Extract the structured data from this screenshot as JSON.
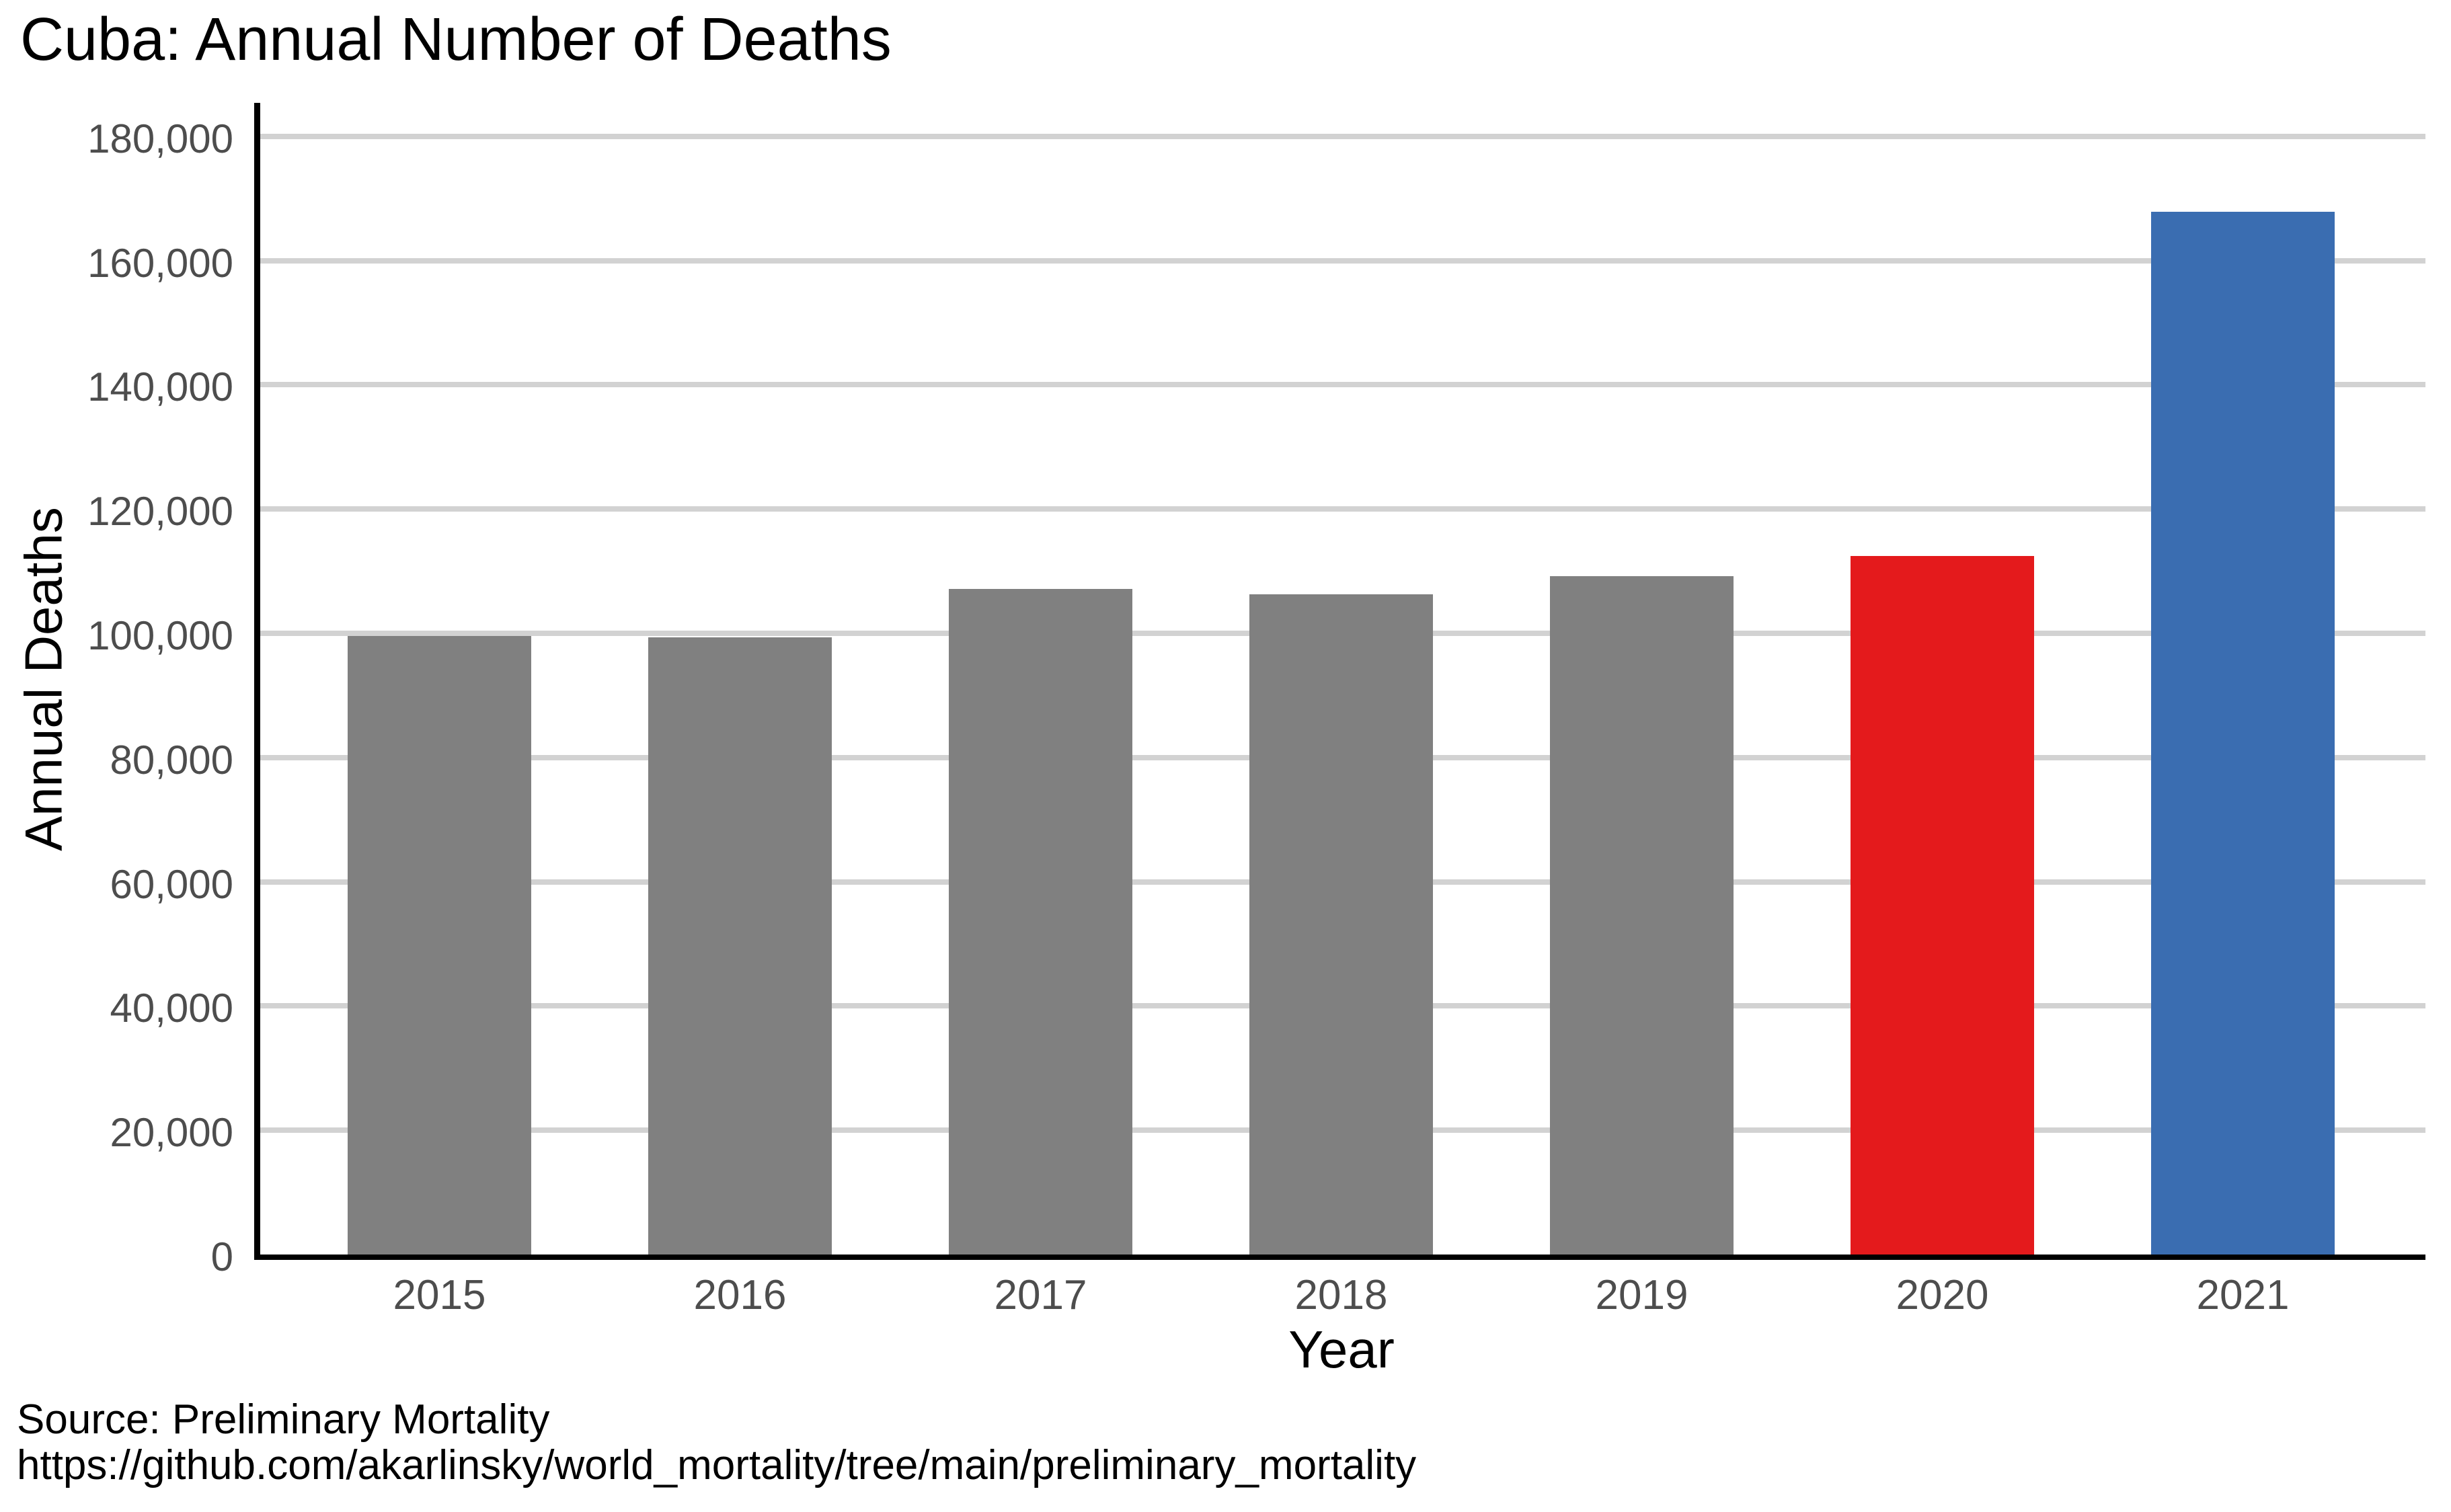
{
  "page": {
    "background_color": "#ffffff"
  },
  "chart_data": {
    "type": "bar",
    "title": "Cuba: Annual Number of Deaths",
    "xlabel": "Year",
    "ylabel": "Annual Deaths",
    "categories": [
      "2015",
      "2016",
      "2017",
      "2018",
      "2019",
      "2020",
      "2021"
    ],
    "values": [
      99600,
      99400,
      107100,
      106300,
      109200,
      112500,
      167900
    ],
    "bar_colors": [
      "#808080",
      "#808080",
      "#808080",
      "#808080",
      "#808080",
      "#e41a1c",
      "#3a6db1"
    ],
    "yticks": [
      {
        "value": 0,
        "label": "0"
      },
      {
        "value": 20000,
        "label": "20,000"
      },
      {
        "value": 40000,
        "label": "40,000"
      },
      {
        "value": 60000,
        "label": "60,000"
      },
      {
        "value": 80000,
        "label": "80,000"
      },
      {
        "value": 100000,
        "label": "100,000"
      },
      {
        "value": 120000,
        "label": "120,000"
      },
      {
        "value": 140000,
        "label": "140,000"
      },
      {
        "value": 160000,
        "label": "160,000"
      },
      {
        "value": 180000,
        "label": "180,000"
      }
    ],
    "ylim": [
      0,
      185400
    ],
    "grid": "horizontal",
    "legend": "none",
    "colors": {
      "default_bar": "#808080",
      "highlight_2020": "#e41a1c",
      "highlight_2021": "#3a6db1",
      "gridline": "#d2d2d2",
      "axis_spine": "#000000",
      "tick_text": "#4d4d4d",
      "title_text": "#000000"
    }
  },
  "source": {
    "line1": "Source: Preliminary Mortality",
    "line2": "https://github.com/akarlinsky/world_mortality/tree/main/preliminary_mortality"
  }
}
